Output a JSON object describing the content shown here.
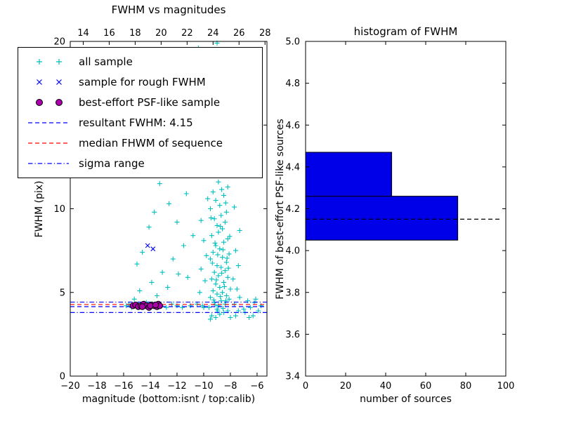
{
  "figure": {
    "background": "#ffffff"
  },
  "colors": {
    "cyan": "#00bfbf",
    "blue": "#0000ff",
    "magenta": "#aa00aa",
    "red": "#ff0000",
    "black": "#000000",
    "hist_fill": "#0000e8"
  },
  "chart_data": [
    {
      "type": "scatter",
      "title": "FWHM vs magnitudes",
      "xlabel": "magnitude (bottom:isnt / top:calib)",
      "ylabel": "FWHM (pix)",
      "xlim": [
        -20,
        -5.26
      ],
      "xlim_top": [
        13.0,
        28.15
      ],
      "ylim": [
        0,
        20
      ],
      "xticks_bottom": [
        "-20",
        "-18",
        "-16",
        "-14",
        "-12",
        "-10",
        "-8",
        "-6"
      ],
      "xticks_top": [
        "14",
        "16",
        "18",
        "20",
        "22",
        "24",
        "26",
        "28"
      ],
      "yticks": [
        "0",
        "5",
        "10",
        "15",
        "20"
      ],
      "series": [
        {
          "name": "all sample",
          "marker": "plus",
          "color": "#00bfbf",
          "points": [
            [
              -9.1,
              3.5
            ],
            [
              -8.8,
              3.7
            ],
            [
              -9.4,
              3.6
            ],
            [
              -8.5,
              3.8
            ],
            [
              -9.0,
              4.0
            ],
            [
              -8.2,
              3.9
            ],
            [
              -9.6,
              4.1
            ],
            [
              -8.9,
              4.2
            ],
            [
              -8.4,
              4.3
            ],
            [
              -9.2,
              4.4
            ],
            [
              -8.7,
              4.5
            ],
            [
              -8.1,
              4.6
            ],
            [
              -9.5,
              4.7
            ],
            [
              -8.3,
              4.8
            ],
            [
              -9.0,
              4.9
            ],
            [
              -8.6,
              5.0
            ],
            [
              -9.3,
              5.1
            ],
            [
              -8.0,
              5.2
            ],
            [
              -8.8,
              5.3
            ],
            [
              -9.1,
              5.5
            ],
            [
              -8.5,
              5.6
            ],
            [
              -9.4,
              5.8
            ],
            [
              -8.2,
              5.9
            ],
            [
              -8.9,
              6.0
            ],
            [
              -9.2,
              6.2
            ],
            [
              -8.4,
              6.3
            ],
            [
              -8.7,
              6.5
            ],
            [
              -9.0,
              6.6
            ],
            [
              -8.3,
              6.8
            ],
            [
              -9.5,
              7.0
            ],
            [
              -8.6,
              7.1
            ],
            [
              -8.1,
              7.3
            ],
            [
              -9.3,
              7.4
            ],
            [
              -8.8,
              7.6
            ],
            [
              -9.1,
              7.8
            ],
            [
              -8.5,
              8.0
            ],
            [
              -8.2,
              8.2
            ],
            [
              -9.4,
              8.4
            ],
            [
              -8.9,
              8.6
            ],
            [
              -8.6,
              8.8
            ],
            [
              -9.0,
              9.0
            ],
            [
              -8.4,
              9.2
            ],
            [
              -9.2,
              9.4
            ],
            [
              -8.7,
              9.6
            ],
            [
              -8.3,
              9.8
            ],
            [
              -9.5,
              10.0
            ],
            [
              -8.8,
              10.2
            ],
            [
              -9.1,
              10.5
            ],
            [
              -8.5,
              10.8
            ],
            [
              -9.3,
              11.0
            ],
            [
              -8.2,
              11.3
            ],
            [
              -8.9,
              11.6
            ],
            [
              -9.0,
              12.0
            ],
            [
              -8.6,
              12.4
            ],
            [
              -9.4,
              12.8
            ],
            [
              -8.3,
              13.2
            ],
            [
              -8.8,
              13.6
            ],
            [
              -9.2,
              14.0
            ],
            [
              -8.5,
              14.5
            ],
            [
              -9.0,
              15.0
            ],
            [
              -8.7,
              15.5
            ],
            [
              -9.3,
              16.0
            ],
            [
              -8.4,
              16.5
            ],
            [
              -8.9,
              17.0
            ],
            [
              -9.1,
              17.5
            ],
            [
              -8.6,
              18.0
            ],
            [
              -9.4,
              18.5
            ],
            [
              -8.2,
              19.0
            ],
            [
              -8.8,
              19.5
            ],
            [
              -9.0,
              19.9
            ],
            [
              -8.95,
              3.9
            ],
            [
              -8.55,
              4.05
            ],
            [
              -9.15,
              4.25
            ],
            [
              -8.35,
              4.5
            ],
            [
              -8.75,
              4.75
            ],
            [
              -9.25,
              4.55
            ],
            [
              -8.45,
              5.35
            ],
            [
              -9.05,
              5.75
            ],
            [
              -8.65,
              6.15
            ],
            [
              -8.15,
              6.45
            ],
            [
              -9.35,
              6.75
            ],
            [
              -8.25,
              7.05
            ],
            [
              -8.95,
              7.25
            ],
            [
              -8.55,
              7.55
            ],
            [
              -9.15,
              7.95
            ],
            [
              -8.05,
              8.35
            ],
            [
              -8.75,
              8.95
            ],
            [
              -9.45,
              9.45
            ],
            [
              -8.35,
              10.35
            ],
            [
              -8.65,
              11.15
            ],
            [
              -10.1,
              4.2
            ],
            [
              -10.3,
              5.0
            ],
            [
              -9.9,
              5.7
            ],
            [
              -10.2,
              6.4
            ],
            [
              -9.8,
              7.2
            ],
            [
              -10.0,
              8.1
            ],
            [
              -10.2,
              9.3
            ],
            [
              -9.7,
              10.6
            ],
            [
              -10.1,
              12.2
            ],
            [
              -9.8,
              14.1
            ],
            [
              -7.6,
              3.6
            ],
            [
              -7.4,
              3.9
            ],
            [
              -7.7,
              4.3
            ],
            [
              -7.3,
              4.7
            ],
            [
              -7.5,
              5.2
            ],
            [
              -7.8,
              5.8
            ],
            [
              -7.4,
              6.6
            ],
            [
              -7.6,
              7.5
            ],
            [
              -7.3,
              8.7
            ],
            [
              -7.7,
              10.1
            ],
            [
              -6.9,
              3.8
            ],
            [
              -6.5,
              4.1
            ],
            [
              -6.2,
              4.4
            ],
            [
              -5.9,
              3.9
            ],
            [
              -6.7,
              4.5
            ],
            [
              -6.3,
              3.6
            ],
            [
              -5.7,
              4.2
            ],
            [
              -7.0,
              4.0
            ],
            [
              -6.1,
              4.6
            ],
            [
              -6.6,
              3.5
            ],
            [
              -15.6,
              4.3
            ],
            [
              -15.2,
              4.6
            ],
            [
              -14.8,
              5.1
            ],
            [
              -14.3,
              4.4
            ],
            [
              -13.9,
              5.6
            ],
            [
              -13.5,
              4.8
            ],
            [
              -13.1,
              6.2
            ],
            [
              -12.7,
              5.3
            ],
            [
              -12.3,
              7.0
            ],
            [
              -11.9,
              6.1
            ],
            [
              -11.5,
              7.8
            ],
            [
              -11.2,
              5.9
            ],
            [
              -10.8,
              8.4
            ],
            [
              -12.0,
              9.2
            ],
            [
              -12.6,
              10.3
            ],
            [
              -13.3,
              11.5
            ],
            [
              -11.7,
              12.1
            ],
            [
              -12.9,
              13.0
            ],
            [
              -14.1,
              8.9
            ],
            [
              -14.6,
              7.4
            ],
            [
              -15.0,
              6.7
            ],
            [
              -13.7,
              9.8
            ],
            [
              -11.3,
              10.9
            ],
            [
              -12.2,
              14.2
            ],
            [
              -13.0,
              15.6
            ],
            [
              -11.8,
              16.8
            ],
            [
              -12.5,
              18.1
            ],
            [
              -11.4,
              19.2
            ],
            [
              -13.4,
              17.3
            ],
            [
              -14.4,
              12.6
            ],
            [
              -10.6,
              15.3
            ],
            [
              -10.9,
              17.9
            ],
            [
              -10.4,
              19.6
            ],
            [
              -11.1,
              14.8
            ],
            [
              -10.7,
              16.4
            ],
            [
              -15.8,
              4.2
            ],
            [
              -15.4,
              4.1
            ],
            [
              -14.9,
              4.3
            ],
            [
              -14.5,
              4.2
            ],
            [
              -14.0,
              4.1
            ],
            [
              -13.6,
              4.3
            ],
            [
              -13.2,
              4.2
            ],
            [
              -12.8,
              4.1
            ],
            [
              -12.4,
              4.3
            ],
            [
              -12.0,
              4.2
            ],
            [
              -11.6,
              4.1
            ],
            [
              -11.0,
              4.2
            ],
            [
              -10.5,
              4.3
            ],
            [
              -10.0,
              4.1
            ],
            [
              -9.5,
              3.4
            ],
            [
              -8.0,
              3.5
            ]
          ]
        },
        {
          "name": "sample for rough FWHM",
          "marker": "x",
          "color": "#0000ff",
          "points": [
            [
              -14.2,
              7.8
            ],
            [
              -13.8,
              7.6
            ]
          ]
        },
        {
          "name": "best-effort PSF-like sample",
          "marker": "circle",
          "color": "#aa00aa",
          "edge": "#000000",
          "points": [
            [
              -15.3,
              4.2
            ],
            [
              -15.1,
              4.25
            ],
            [
              -14.9,
              4.15
            ],
            [
              -14.7,
              4.2
            ],
            [
              -14.5,
              4.3
            ],
            [
              -14.3,
              4.2
            ],
            [
              -14.1,
              4.1
            ],
            [
              -13.9,
              4.25
            ],
            [
              -13.7,
              4.2
            ],
            [
              -13.5,
              4.15
            ],
            [
              -13.4,
              4.3
            ],
            [
              -13.3,
              4.2
            ],
            [
              -14.0,
              4.2
            ],
            [
              -14.6,
              4.15
            ],
            [
              -13.6,
              4.25
            ]
          ]
        }
      ],
      "hlines": [
        {
          "label": "resultant FWHM: 4.15",
          "y": 4.15,
          "style": "dashed",
          "color": "#0000ff"
        },
        {
          "label": "median FHWM of sequence",
          "y": 4.28,
          "style": "dashed",
          "color": "#ff0000"
        },
        {
          "label": "sigma range upper",
          "y": 4.42,
          "style": "dashdot",
          "color": "#0000ff"
        },
        {
          "label": "sigma range lower",
          "y": 3.8,
          "style": "dashdot",
          "color": "#0000ff"
        }
      ],
      "legend": [
        {
          "label": "all sample",
          "marker": "plus2",
          "color": "#00bfbf"
        },
        {
          "label": "sample for rough FWHM",
          "marker": "x2",
          "color": "#0000ff"
        },
        {
          "label": "best-effort PSF-like sample",
          "marker": "circle2",
          "color": "#aa00aa",
          "edge": "#000000"
        },
        {
          "label": "resultant FWHM: 4.15",
          "marker": "dashed",
          "color": "#0000ff"
        },
        {
          "label": "median FHWM of sequence",
          "marker": "dashed",
          "color": "#ff0000"
        },
        {
          "label": "sigma range",
          "marker": "dashdot",
          "color": "#0000ff"
        }
      ]
    },
    {
      "type": "horizontal-histogram",
      "title": "histogram of FWHM",
      "xlabel": "number of sources",
      "ylabel": "FWHM of best-effort PSF-like sources",
      "xlim": [
        0,
        100
      ],
      "ylim": [
        3.4,
        5.0
      ],
      "xticks": [
        "0",
        "20",
        "40",
        "60",
        "80",
        "100"
      ],
      "yticks": [
        "3.4",
        "3.6",
        "3.8",
        "4.0",
        "4.2",
        "4.4",
        "4.6",
        "4.8",
        "5.0"
      ],
      "bar_color": "#0000e8",
      "bars": [
        {
          "fwhm_from": 4.05,
          "fwhm_to": 4.26,
          "count": 76
        },
        {
          "fwhm_from": 4.26,
          "fwhm_to": 4.47,
          "count": 43
        }
      ],
      "dashed_line": {
        "fwhm": 4.15,
        "x_from": 0,
        "x_to": 98,
        "color": "#000000"
      }
    }
  ]
}
